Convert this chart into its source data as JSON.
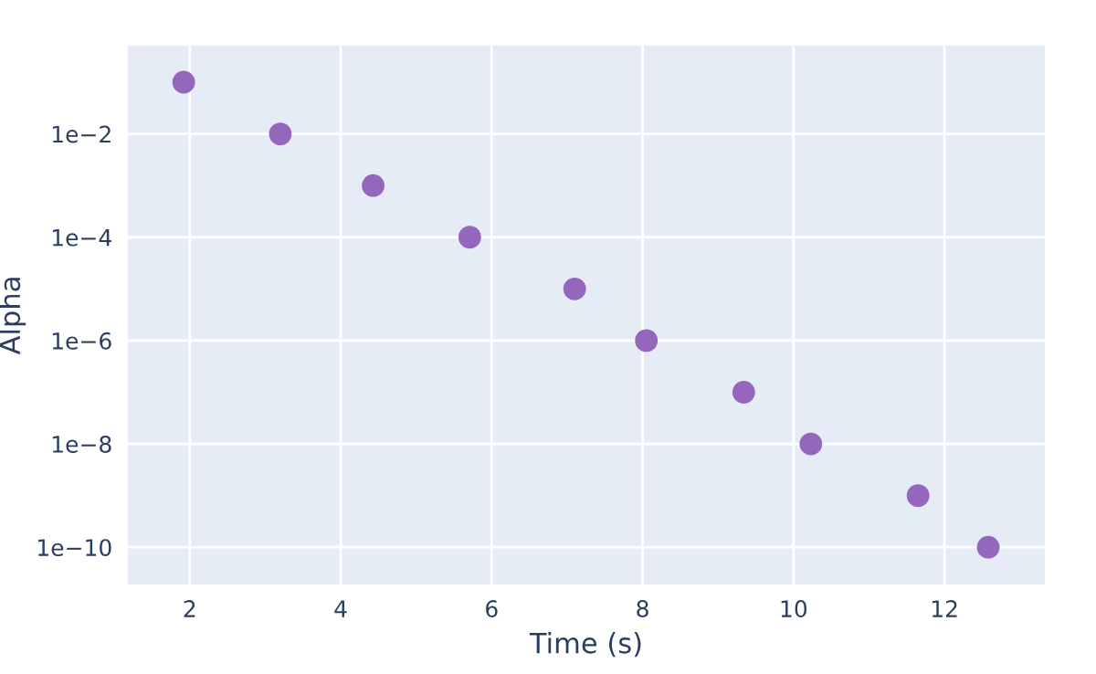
{
  "chart_data": {
    "type": "scatter",
    "xlabel": "Time (s)",
    "ylabel": "Alpha",
    "log": "y",
    "x": [
      1.92,
      3.2,
      4.43,
      5.71,
      7.1,
      8.05,
      9.34,
      10.23,
      11.65,
      12.58
    ],
    "series": [
      {
        "color": "#9467bd",
        "values": [
          0.1,
          0.01,
          0.001,
          0.0001,
          1e-05,
          1e-06,
          1e-07,
          1e-08,
          1e-09,
          1e-10
        ]
      }
    ],
    "xlim": [
      1.18,
      13.33
    ],
    "xticks": [
      2,
      4,
      6,
      8,
      10,
      12
    ],
    "ylim": [
      1.9e-11,
      0.51
    ],
    "yticks": [
      {
        "value": 0.01,
        "label": "1e−2"
      },
      {
        "value": 0.0001,
        "label": "1e−4"
      },
      {
        "value": 1e-06,
        "label": "1e−6"
      },
      {
        "value": 1e-08,
        "label": "1e−8"
      },
      {
        "value": 1e-10,
        "label": "1e−10"
      }
    ],
    "grid": true,
    "marker": "circle"
  }
}
